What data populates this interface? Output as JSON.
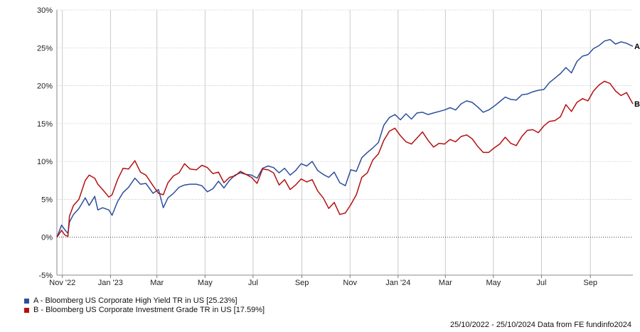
{
  "chart_data": {
    "type": "line",
    "x_ticks": [
      "Nov '22",
      "Jan '23",
      "Mar",
      "May",
      "Jul",
      "Sep",
      "Nov",
      "Jan '24",
      "Mar",
      "May",
      "Jul",
      "Sep"
    ],
    "y_ticks": [
      "30%",
      "25%",
      "20%",
      "15%",
      "10%",
      "5%",
      "0%",
      "-5%"
    ],
    "ylim": [
      -5,
      30
    ],
    "xlim": [
      "2022-10-25",
      "2024-10-25"
    ],
    "grid": true,
    "series": [
      {
        "label": "A",
        "name": "A - Bloomberg US Corporate High Yield TR in US [25.23%]",
        "color": "#2c4f9c",
        "points": [
          [
            "2022-10-25",
            0.0
          ],
          [
            "2022-10-31",
            1.6
          ],
          [
            "2022-11-04",
            1.0
          ],
          [
            "2022-11-08",
            0.5
          ],
          [
            "2022-11-10",
            2.0
          ],
          [
            "2022-11-15",
            3.0
          ],
          [
            "2022-11-22",
            3.8
          ],
          [
            "2022-11-30",
            5.2
          ],
          [
            "2022-12-05",
            4.2
          ],
          [
            "2022-12-12",
            5.4
          ],
          [
            "2022-12-16",
            3.6
          ],
          [
            "2022-12-22",
            3.9
          ],
          [
            "2022-12-30",
            3.6
          ],
          [
            "2023-01-03",
            2.9
          ],
          [
            "2023-01-10",
            4.7
          ],
          [
            "2023-01-17",
            5.9
          ],
          [
            "2023-01-24",
            6.6
          ],
          [
            "2023-02-01",
            7.8
          ],
          [
            "2023-02-08",
            7.0
          ],
          [
            "2023-02-15",
            7.1
          ],
          [
            "2023-02-24",
            5.8
          ],
          [
            "2023-03-03",
            6.3
          ],
          [
            "2023-03-09",
            3.9
          ],
          [
            "2023-03-15",
            5.2
          ],
          [
            "2023-03-22",
            5.8
          ],
          [
            "2023-03-29",
            6.6
          ],
          [
            "2023-04-05",
            6.9
          ],
          [
            "2023-04-12",
            7.0
          ],
          [
            "2023-04-20",
            7.0
          ],
          [
            "2023-04-27",
            6.8
          ],
          [
            "2023-05-04",
            6.0
          ],
          [
            "2023-05-11",
            6.4
          ],
          [
            "2023-05-18",
            7.4
          ],
          [
            "2023-05-25",
            6.5
          ],
          [
            "2023-06-01",
            7.5
          ],
          [
            "2023-06-08",
            8.2
          ],
          [
            "2023-06-15",
            8.5
          ],
          [
            "2023-06-22",
            8.3
          ],
          [
            "2023-06-29",
            8.2
          ],
          [
            "2023-07-06",
            7.8
          ],
          [
            "2023-07-13",
            9.1
          ],
          [
            "2023-07-20",
            9.4
          ],
          [
            "2023-07-27",
            9.2
          ],
          [
            "2023-08-03",
            8.5
          ],
          [
            "2023-08-10",
            9.1
          ],
          [
            "2023-08-17",
            8.2
          ],
          [
            "2023-08-24",
            8.8
          ],
          [
            "2023-08-31",
            9.7
          ],
          [
            "2023-09-07",
            9.4
          ],
          [
            "2023-09-14",
            10.0
          ],
          [
            "2023-09-21",
            8.8
          ],
          [
            "2023-09-28",
            8.3
          ],
          [
            "2023-10-05",
            7.9
          ],
          [
            "2023-10-12",
            8.6
          ],
          [
            "2023-10-19",
            7.2
          ],
          [
            "2023-10-26",
            6.8
          ],
          [
            "2023-11-02",
            8.9
          ],
          [
            "2023-11-09",
            8.7
          ],
          [
            "2023-11-16",
            10.5
          ],
          [
            "2023-11-23",
            11.2
          ],
          [
            "2023-11-30",
            11.8
          ],
          [
            "2023-12-07",
            12.5
          ],
          [
            "2023-12-14",
            14.8
          ],
          [
            "2023-12-21",
            15.8
          ],
          [
            "2023-12-28",
            16.2
          ],
          [
            "2024-01-04",
            15.5
          ],
          [
            "2024-01-11",
            16.3
          ],
          [
            "2024-01-18",
            15.6
          ],
          [
            "2024-01-25",
            16.4
          ],
          [
            "2024-02-01",
            16.5
          ],
          [
            "2024-02-08",
            16.2
          ],
          [
            "2024-02-15",
            16.4
          ],
          [
            "2024-02-22",
            16.6
          ],
          [
            "2024-02-29",
            16.8
          ],
          [
            "2024-03-07",
            17.1
          ],
          [
            "2024-03-14",
            16.8
          ],
          [
            "2024-03-21",
            17.6
          ],
          [
            "2024-03-28",
            18.0
          ],
          [
            "2024-04-04",
            17.8
          ],
          [
            "2024-04-11",
            17.2
          ],
          [
            "2024-04-18",
            16.5
          ],
          [
            "2024-04-25",
            16.8
          ],
          [
            "2024-05-02",
            17.3
          ],
          [
            "2024-05-09",
            17.9
          ],
          [
            "2024-05-16",
            18.5
          ],
          [
            "2024-05-23",
            18.2
          ],
          [
            "2024-05-30",
            18.1
          ],
          [
            "2024-06-06",
            18.8
          ],
          [
            "2024-06-13",
            18.9
          ],
          [
            "2024-06-20",
            19.2
          ],
          [
            "2024-06-27",
            19.4
          ],
          [
            "2024-07-04",
            19.5
          ],
          [
            "2024-07-11",
            20.4
          ],
          [
            "2024-07-18",
            21.0
          ],
          [
            "2024-07-25",
            21.6
          ],
          [
            "2024-08-01",
            22.4
          ],
          [
            "2024-08-08",
            21.7
          ],
          [
            "2024-08-15",
            23.2
          ],
          [
            "2024-08-22",
            23.9
          ],
          [
            "2024-08-29",
            24.1
          ],
          [
            "2024-09-05",
            24.9
          ],
          [
            "2024-09-12",
            25.3
          ],
          [
            "2024-09-19",
            25.9
          ],
          [
            "2024-09-26",
            26.1
          ],
          [
            "2024-10-03",
            25.5
          ],
          [
            "2024-10-10",
            25.8
          ],
          [
            "2024-10-17",
            25.6
          ],
          [
            "2024-10-25",
            25.2
          ]
        ]
      },
      {
        "label": "B",
        "name": "B - Bloomberg US Corporate Investment Grade TR in US [17.59%]",
        "color": "#b31010",
        "points": [
          [
            "2022-10-25",
            0.0
          ],
          [
            "2022-10-31",
            0.9
          ],
          [
            "2022-11-04",
            0.3
          ],
          [
            "2022-11-08",
            0.1
          ],
          [
            "2022-11-10",
            2.8
          ],
          [
            "2022-11-15",
            4.2
          ],
          [
            "2022-11-22",
            5.0
          ],
          [
            "2022-11-30",
            7.5
          ],
          [
            "2022-12-05",
            8.2
          ],
          [
            "2022-12-12",
            7.8
          ],
          [
            "2022-12-16",
            7.0
          ],
          [
            "2022-12-22",
            6.3
          ],
          [
            "2022-12-30",
            5.3
          ],
          [
            "2023-01-03",
            5.6
          ],
          [
            "2023-01-10",
            7.6
          ],
          [
            "2023-01-17",
            9.1
          ],
          [
            "2023-01-24",
            9.0
          ],
          [
            "2023-02-01",
            10.1
          ],
          [
            "2023-02-08",
            8.6
          ],
          [
            "2023-02-15",
            8.2
          ],
          [
            "2023-02-24",
            6.8
          ],
          [
            "2023-03-03",
            5.8
          ],
          [
            "2023-03-09",
            5.6
          ],
          [
            "2023-03-15",
            7.2
          ],
          [
            "2023-03-22",
            8.1
          ],
          [
            "2023-03-29",
            8.5
          ],
          [
            "2023-04-05",
            9.7
          ],
          [
            "2023-04-12",
            9.0
          ],
          [
            "2023-04-20",
            8.9
          ],
          [
            "2023-04-27",
            9.5
          ],
          [
            "2023-05-04",
            9.2
          ],
          [
            "2023-05-11",
            8.4
          ],
          [
            "2023-05-18",
            8.6
          ],
          [
            "2023-05-25",
            7.2
          ],
          [
            "2023-06-01",
            7.9
          ],
          [
            "2023-06-08",
            8.1
          ],
          [
            "2023-06-15",
            8.7
          ],
          [
            "2023-06-22",
            8.3
          ],
          [
            "2023-06-29",
            7.9
          ],
          [
            "2023-07-06",
            7.1
          ],
          [
            "2023-07-13",
            9.0
          ],
          [
            "2023-07-20",
            8.9
          ],
          [
            "2023-07-27",
            8.5
          ],
          [
            "2023-08-03",
            6.9
          ],
          [
            "2023-08-10",
            7.6
          ],
          [
            "2023-08-17",
            6.3
          ],
          [
            "2023-08-24",
            6.9
          ],
          [
            "2023-08-31",
            7.7
          ],
          [
            "2023-09-07",
            7.3
          ],
          [
            "2023-09-14",
            7.6
          ],
          [
            "2023-09-21",
            6.1
          ],
          [
            "2023-09-28",
            5.2
          ],
          [
            "2023-10-05",
            3.8
          ],
          [
            "2023-10-12",
            4.6
          ],
          [
            "2023-10-19",
            3.0
          ],
          [
            "2023-10-26",
            3.2
          ],
          [
            "2023-11-02",
            4.3
          ],
          [
            "2023-11-09",
            5.6
          ],
          [
            "2023-11-16",
            7.9
          ],
          [
            "2023-11-23",
            8.5
          ],
          [
            "2023-11-30",
            10.2
          ],
          [
            "2023-12-07",
            11.0
          ],
          [
            "2023-12-14",
            12.8
          ],
          [
            "2023-12-21",
            14.0
          ],
          [
            "2023-12-28",
            14.4
          ],
          [
            "2024-01-04",
            13.4
          ],
          [
            "2024-01-11",
            12.6
          ],
          [
            "2024-01-18",
            12.3
          ],
          [
            "2024-01-25",
            13.1
          ],
          [
            "2024-02-01",
            13.9
          ],
          [
            "2024-02-08",
            12.8
          ],
          [
            "2024-02-15",
            11.9
          ],
          [
            "2024-02-22",
            12.4
          ],
          [
            "2024-02-29",
            12.3
          ],
          [
            "2024-03-07",
            12.9
          ],
          [
            "2024-03-14",
            12.6
          ],
          [
            "2024-03-21",
            13.3
          ],
          [
            "2024-03-28",
            13.5
          ],
          [
            "2024-04-04",
            13.0
          ],
          [
            "2024-04-11",
            12.0
          ],
          [
            "2024-04-18",
            11.2
          ],
          [
            "2024-04-25",
            11.2
          ],
          [
            "2024-05-02",
            11.8
          ],
          [
            "2024-05-09",
            12.3
          ],
          [
            "2024-05-16",
            13.2
          ],
          [
            "2024-05-23",
            12.4
          ],
          [
            "2024-05-30",
            12.1
          ],
          [
            "2024-06-06",
            13.3
          ],
          [
            "2024-06-13",
            14.1
          ],
          [
            "2024-06-20",
            14.2
          ],
          [
            "2024-06-27",
            13.8
          ],
          [
            "2024-07-04",
            14.7
          ],
          [
            "2024-07-11",
            15.3
          ],
          [
            "2024-07-18",
            15.4
          ],
          [
            "2024-07-25",
            15.9
          ],
          [
            "2024-08-01",
            17.5
          ],
          [
            "2024-08-08",
            16.6
          ],
          [
            "2024-08-15",
            17.8
          ],
          [
            "2024-08-22",
            18.3
          ],
          [
            "2024-08-29",
            18.0
          ],
          [
            "2024-09-05",
            19.3
          ],
          [
            "2024-09-12",
            20.1
          ],
          [
            "2024-09-19",
            20.6
          ],
          [
            "2024-09-26",
            20.3
          ],
          [
            "2024-10-03",
            19.3
          ],
          [
            "2024-10-10",
            18.7
          ],
          [
            "2024-10-17",
            19.1
          ],
          [
            "2024-10-25",
            17.6
          ]
        ]
      }
    ]
  },
  "legend": {
    "a_label": "A - Bloomberg US Corporate High Yield TR in US [25.23%]",
    "b_label": "B - Bloomberg US Corporate Investment Grade TR in US [17.59%]",
    "a_color": "#2c4f9c",
    "b_color": "#b31010"
  },
  "footer": {
    "text": "25/10/2022 - 25/10/2024 Data from FE fundinfo2024"
  }
}
